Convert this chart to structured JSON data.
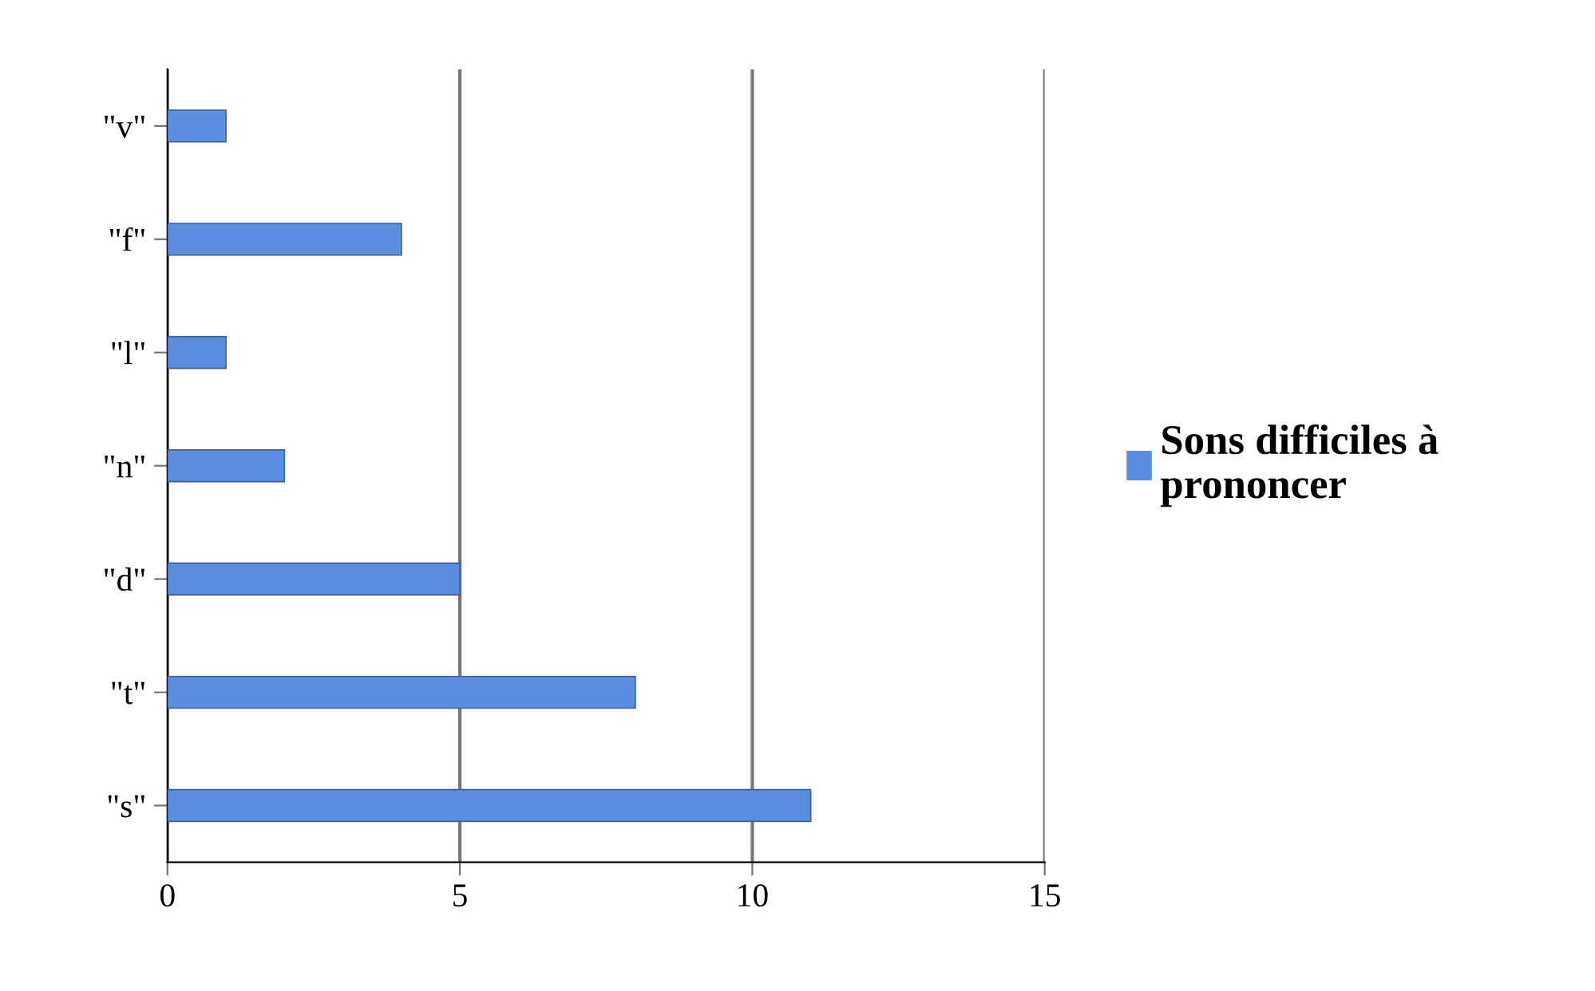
{
  "chart_data": {
    "type": "bar",
    "orientation": "horizontal",
    "categories": [
      "\"v\"",
      "\"f\"",
      "\"l\"",
      "\"n\"",
      "\"d\"",
      "\"t\"",
      "\"s\""
    ],
    "series": [
      {
        "name": "Sons difficiles à prononcer",
        "color": "#5b8ee0",
        "values": [
          1,
          4,
          1,
          2,
          5,
          8,
          11
        ]
      }
    ],
    "xlim": [
      0,
      15
    ],
    "xticks": [
      0,
      5,
      10,
      15
    ],
    "grid": "x",
    "legend": "right"
  }
}
